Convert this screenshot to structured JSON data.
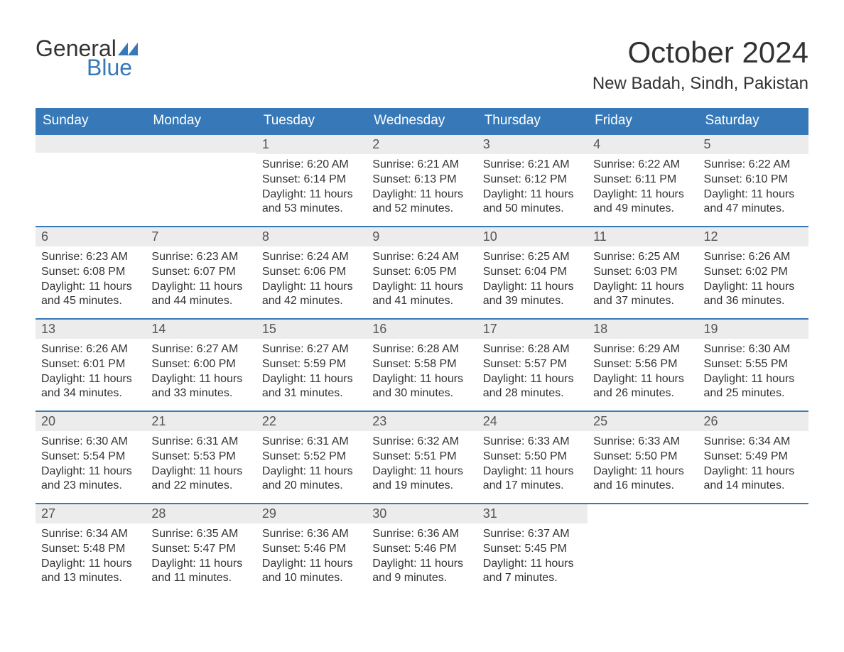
{
  "logo": {
    "text_general": "General",
    "text_blue": "Blue",
    "icon_color": "#3779b8"
  },
  "title": {
    "month": "October 2024",
    "location": "New Badah, Sindh, Pakistan"
  },
  "theme": {
    "header_bg": "#3779b8",
    "header_text": "#ffffff",
    "day_row_bg": "#ececec",
    "day_row_border": "#3779b8",
    "text_color": "#333333"
  },
  "day_names": [
    "Sunday",
    "Monday",
    "Tuesday",
    "Wednesday",
    "Thursday",
    "Friday",
    "Saturday"
  ],
  "weeks": [
    [
      {
        "day": "",
        "sunrise": "",
        "sunset": "",
        "daylight": ""
      },
      {
        "day": "",
        "sunrise": "",
        "sunset": "",
        "daylight": ""
      },
      {
        "day": "1",
        "sunrise": "Sunrise: 6:20 AM",
        "sunset": "Sunset: 6:14 PM",
        "daylight": "Daylight: 11 hours and 53 minutes."
      },
      {
        "day": "2",
        "sunrise": "Sunrise: 6:21 AM",
        "sunset": "Sunset: 6:13 PM",
        "daylight": "Daylight: 11 hours and 52 minutes."
      },
      {
        "day": "3",
        "sunrise": "Sunrise: 6:21 AM",
        "sunset": "Sunset: 6:12 PM",
        "daylight": "Daylight: 11 hours and 50 minutes."
      },
      {
        "day": "4",
        "sunrise": "Sunrise: 6:22 AM",
        "sunset": "Sunset: 6:11 PM",
        "daylight": "Daylight: 11 hours and 49 minutes."
      },
      {
        "day": "5",
        "sunrise": "Sunrise: 6:22 AM",
        "sunset": "Sunset: 6:10 PM",
        "daylight": "Daylight: 11 hours and 47 minutes."
      }
    ],
    [
      {
        "day": "6",
        "sunrise": "Sunrise: 6:23 AM",
        "sunset": "Sunset: 6:08 PM",
        "daylight": "Daylight: 11 hours and 45 minutes."
      },
      {
        "day": "7",
        "sunrise": "Sunrise: 6:23 AM",
        "sunset": "Sunset: 6:07 PM",
        "daylight": "Daylight: 11 hours and 44 minutes."
      },
      {
        "day": "8",
        "sunrise": "Sunrise: 6:24 AM",
        "sunset": "Sunset: 6:06 PM",
        "daylight": "Daylight: 11 hours and 42 minutes."
      },
      {
        "day": "9",
        "sunrise": "Sunrise: 6:24 AM",
        "sunset": "Sunset: 6:05 PM",
        "daylight": "Daylight: 11 hours and 41 minutes."
      },
      {
        "day": "10",
        "sunrise": "Sunrise: 6:25 AM",
        "sunset": "Sunset: 6:04 PM",
        "daylight": "Daylight: 11 hours and 39 minutes."
      },
      {
        "day": "11",
        "sunrise": "Sunrise: 6:25 AM",
        "sunset": "Sunset: 6:03 PM",
        "daylight": "Daylight: 11 hours and 37 minutes."
      },
      {
        "day": "12",
        "sunrise": "Sunrise: 6:26 AM",
        "sunset": "Sunset: 6:02 PM",
        "daylight": "Daylight: 11 hours and 36 minutes."
      }
    ],
    [
      {
        "day": "13",
        "sunrise": "Sunrise: 6:26 AM",
        "sunset": "Sunset: 6:01 PM",
        "daylight": "Daylight: 11 hours and 34 minutes."
      },
      {
        "day": "14",
        "sunrise": "Sunrise: 6:27 AM",
        "sunset": "Sunset: 6:00 PM",
        "daylight": "Daylight: 11 hours and 33 minutes."
      },
      {
        "day": "15",
        "sunrise": "Sunrise: 6:27 AM",
        "sunset": "Sunset: 5:59 PM",
        "daylight": "Daylight: 11 hours and 31 minutes."
      },
      {
        "day": "16",
        "sunrise": "Sunrise: 6:28 AM",
        "sunset": "Sunset: 5:58 PM",
        "daylight": "Daylight: 11 hours and 30 minutes."
      },
      {
        "day": "17",
        "sunrise": "Sunrise: 6:28 AM",
        "sunset": "Sunset: 5:57 PM",
        "daylight": "Daylight: 11 hours and 28 minutes."
      },
      {
        "day": "18",
        "sunrise": "Sunrise: 6:29 AM",
        "sunset": "Sunset: 5:56 PM",
        "daylight": "Daylight: 11 hours and 26 minutes."
      },
      {
        "day": "19",
        "sunrise": "Sunrise: 6:30 AM",
        "sunset": "Sunset: 5:55 PM",
        "daylight": "Daylight: 11 hours and 25 minutes."
      }
    ],
    [
      {
        "day": "20",
        "sunrise": "Sunrise: 6:30 AM",
        "sunset": "Sunset: 5:54 PM",
        "daylight": "Daylight: 11 hours and 23 minutes."
      },
      {
        "day": "21",
        "sunrise": "Sunrise: 6:31 AM",
        "sunset": "Sunset: 5:53 PM",
        "daylight": "Daylight: 11 hours and 22 minutes."
      },
      {
        "day": "22",
        "sunrise": "Sunrise: 6:31 AM",
        "sunset": "Sunset: 5:52 PM",
        "daylight": "Daylight: 11 hours and 20 minutes."
      },
      {
        "day": "23",
        "sunrise": "Sunrise: 6:32 AM",
        "sunset": "Sunset: 5:51 PM",
        "daylight": "Daylight: 11 hours and 19 minutes."
      },
      {
        "day": "24",
        "sunrise": "Sunrise: 6:33 AM",
        "sunset": "Sunset: 5:50 PM",
        "daylight": "Daylight: 11 hours and 17 minutes."
      },
      {
        "day": "25",
        "sunrise": "Sunrise: 6:33 AM",
        "sunset": "Sunset: 5:50 PM",
        "daylight": "Daylight: 11 hours and 16 minutes."
      },
      {
        "day": "26",
        "sunrise": "Sunrise: 6:34 AM",
        "sunset": "Sunset: 5:49 PM",
        "daylight": "Daylight: 11 hours and 14 minutes."
      }
    ],
    [
      {
        "day": "27",
        "sunrise": "Sunrise: 6:34 AM",
        "sunset": "Sunset: 5:48 PM",
        "daylight": "Daylight: 11 hours and 13 minutes."
      },
      {
        "day": "28",
        "sunrise": "Sunrise: 6:35 AM",
        "sunset": "Sunset: 5:47 PM",
        "daylight": "Daylight: 11 hours and 11 minutes."
      },
      {
        "day": "29",
        "sunrise": "Sunrise: 6:36 AM",
        "sunset": "Sunset: 5:46 PM",
        "daylight": "Daylight: 11 hours and 10 minutes."
      },
      {
        "day": "30",
        "sunrise": "Sunrise: 6:36 AM",
        "sunset": "Sunset: 5:46 PM",
        "daylight": "Daylight: 11 hours and 9 minutes."
      },
      {
        "day": "31",
        "sunrise": "Sunrise: 6:37 AM",
        "sunset": "Sunset: 5:45 PM",
        "daylight": "Daylight: 11 hours and 7 minutes."
      },
      {
        "day": "",
        "sunrise": "",
        "sunset": "",
        "daylight": ""
      },
      {
        "day": "",
        "sunrise": "",
        "sunset": "",
        "daylight": ""
      }
    ]
  ]
}
